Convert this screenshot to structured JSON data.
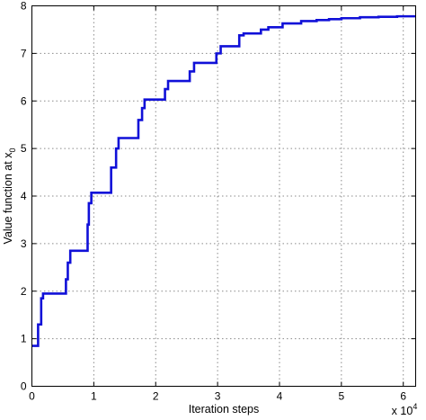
{
  "chart_data": {
    "type": "line",
    "title": "",
    "xlabel": "Iteration steps",
    "ylabel": "Value function at x",
    "ylabel_subscript": "0",
    "x_multiplier_base": "x 10",
    "x_multiplier_exponent": "4",
    "xlim": [
      0,
      6.2
    ],
    "ylim": [
      0,
      8
    ],
    "xticks": [
      0,
      1,
      2,
      3,
      4,
      5,
      6
    ],
    "yticks": [
      0,
      1,
      2,
      3,
      4,
      5,
      6,
      7,
      8
    ],
    "grid": true,
    "series_color": "#1010d8",
    "series": [
      {
        "x": [
          0,
          0.1,
          0.1,
          0.15,
          0.15,
          0.18,
          0.18,
          0.22,
          0.22,
          0.55,
          0.55,
          0.58,
          0.58,
          0.62,
          0.62,
          0.65,
          0.65,
          0.9,
          0.9,
          0.92,
          0.92,
          0.96,
          0.96,
          1.02,
          1.02,
          1.28,
          1.28,
          1.36,
          1.36,
          1.4,
          1.4,
          1.45,
          1.45,
          1.72,
          1.72,
          1.78,
          1.78,
          1.82,
          1.82,
          1.86,
          1.86,
          2.15,
          2.15,
          2.2,
          2.2,
          2.28,
          2.28,
          2.55,
          2.55,
          2.62,
          2.62,
          2.68,
          2.68,
          2.98,
          2.98,
          3.05,
          3.05,
          3.15,
          3.15,
          3.35,
          3.35,
          3.42,
          3.42,
          3.7,
          3.7,
          3.82,
          3.82,
          4.05,
          4.05,
          4.35,
          4.35,
          4.6,
          4.6,
          4.8,
          4.8,
          5.0,
          5.0,
          5.3,
          5.3,
          5.6,
          5.6,
          5.9,
          5.9,
          6.2
        ],
        "y": [
          0.85,
          0.85,
          1.3,
          1.3,
          1.85,
          1.85,
          1.95,
          1.95,
          1.95,
          1.95,
          2.25,
          2.25,
          2.6,
          2.6,
          2.85,
          2.85,
          2.85,
          2.85,
          3.4,
          3.4,
          3.85,
          3.85,
          4.07,
          4.07,
          4.07,
          4.07,
          4.6,
          4.6,
          5.0,
          5.0,
          5.22,
          5.22,
          5.22,
          5.22,
          5.6,
          5.6,
          5.85,
          5.85,
          6.03,
          6.03,
          6.03,
          6.03,
          6.25,
          6.25,
          6.42,
          6.42,
          6.42,
          6.42,
          6.62,
          6.62,
          6.8,
          6.8,
          6.8,
          6.8,
          7.0,
          7.0,
          7.15,
          7.15,
          7.15,
          7.15,
          7.38,
          7.38,
          7.42,
          7.42,
          7.5,
          7.5,
          7.55,
          7.55,
          7.63,
          7.63,
          7.68,
          7.68,
          7.7,
          7.7,
          7.72,
          7.72,
          7.74,
          7.74,
          7.76,
          7.76,
          7.77,
          7.77,
          7.78,
          7.78
        ]
      }
    ]
  }
}
